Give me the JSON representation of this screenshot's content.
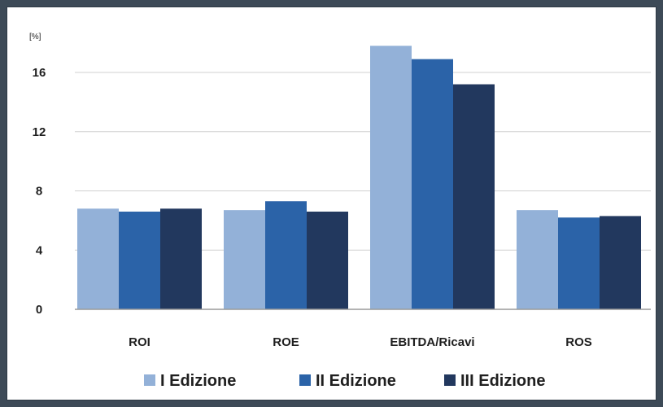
{
  "chart_data": {
    "type": "bar",
    "unit_label": "[%]",
    "categories": [
      "ROI",
      "ROE",
      "EBITDA/Ricavi",
      "ROS"
    ],
    "series": [
      {
        "name": "I Edizione",
        "color": "#93b1d8",
        "values": [
          6.8,
          6.7,
          17.8,
          6.7
        ]
      },
      {
        "name": "II Edizione",
        "color": "#2b63a8",
        "values": [
          6.6,
          7.3,
          16.9,
          6.2
        ]
      },
      {
        "name": "III Edizione",
        "color": "#22385e",
        "values": [
          6.8,
          6.6,
          15.2,
          6.3
        ]
      }
    ],
    "yticks": [
      "0",
      "4",
      "8",
      "12",
      "16"
    ],
    "ylim": [
      0,
      18
    ],
    "grid": true,
    "legend_position": "bottom"
  }
}
